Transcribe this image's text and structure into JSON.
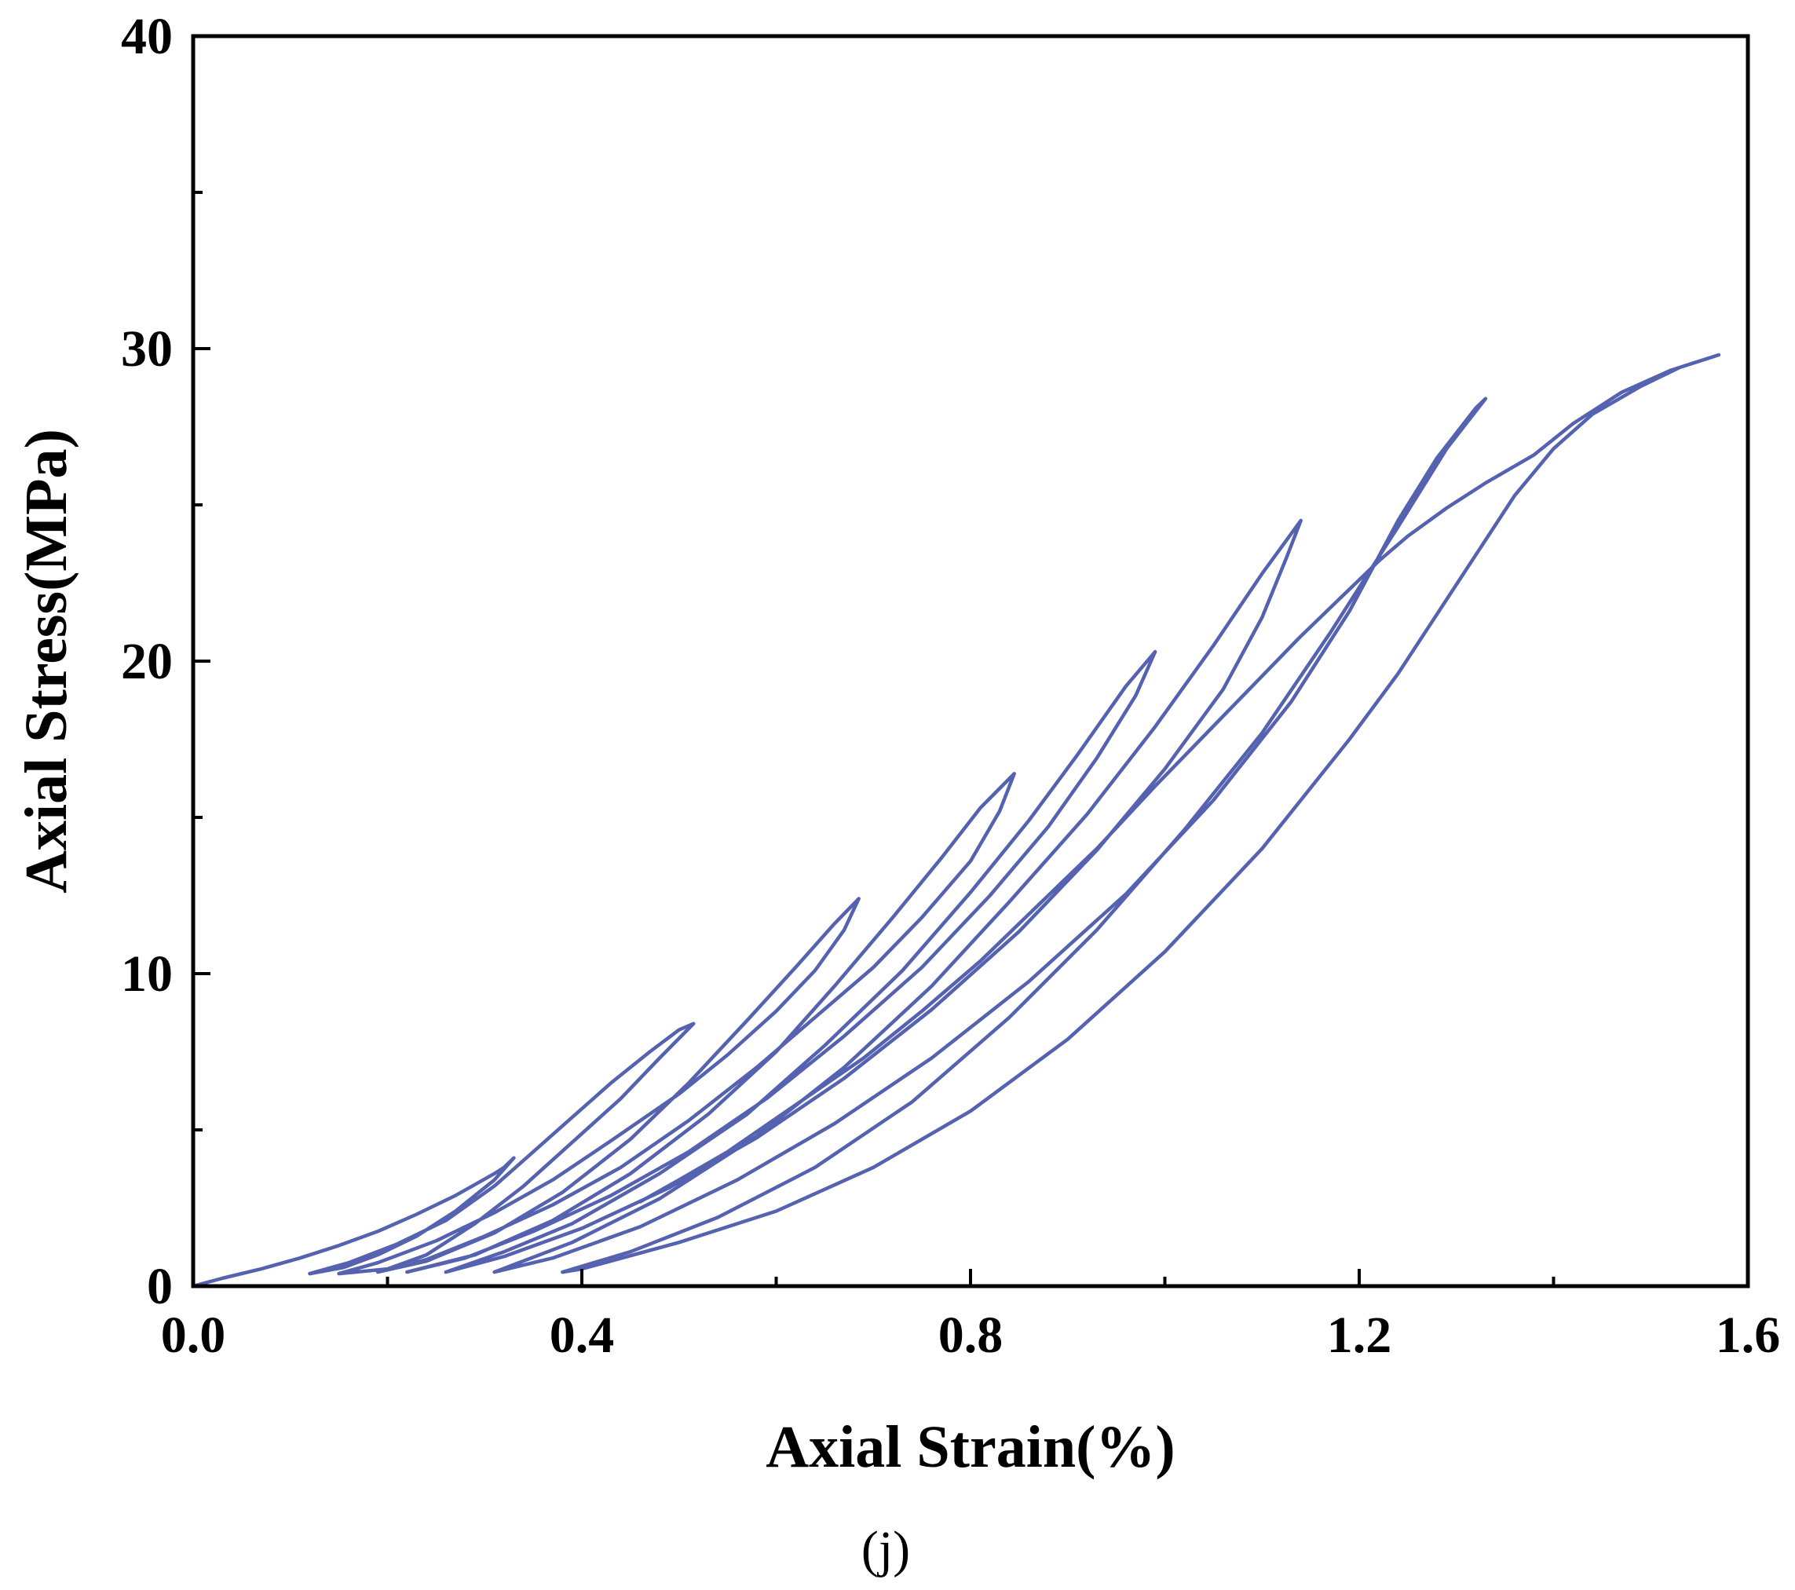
{
  "chart_data": {
    "type": "line",
    "title": "",
    "caption": "(j)",
    "xlabel": "Axial Strain(%)",
    "ylabel": "Axial Stress(MPa)",
    "xlim": [
      0,
      1.6
    ],
    "ylim": [
      0,
      40
    ],
    "x_major_ticks": [
      0.0,
      0.4,
      0.8,
      1.2,
      1.6
    ],
    "x_tick_labels": [
      "0.0",
      "0.4",
      "0.8",
      "1.2",
      "1.6"
    ],
    "x_minor_ticks": [
      0.2,
      0.6,
      1.0,
      1.4
    ],
    "y_major_ticks": [
      0,
      10,
      20,
      30,
      40
    ],
    "y_tick_labels": [
      "0",
      "10",
      "20",
      "30",
      "40"
    ],
    "y_minor_ticks": [
      5,
      15,
      25,
      35
    ],
    "grid": false,
    "legend": "none",
    "line_color": "#5562b0",
    "series": [
      {
        "points": [
          [
            0.0,
            0.0
          ],
          [
            0.03,
            0.25
          ],
          [
            0.07,
            0.55
          ],
          [
            0.11,
            0.9
          ],
          [
            0.15,
            1.3
          ],
          [
            0.19,
            1.75
          ],
          [
            0.23,
            2.3
          ],
          [
            0.27,
            2.9
          ],
          [
            0.31,
            3.6
          ],
          [
            0.32,
            3.8
          ],
          [
            0.33,
            4.1
          ],
          [
            0.31,
            3.4
          ],
          [
            0.27,
            2.4
          ],
          [
            0.23,
            1.6
          ],
          [
            0.19,
            1.0
          ],
          [
            0.155,
            0.6
          ],
          [
            0.12,
            0.4
          ],
          [
            0.16,
            0.75
          ],
          [
            0.21,
            1.35
          ],
          [
            0.26,
            2.1
          ],
          [
            0.31,
            3.2
          ],
          [
            0.35,
            4.3
          ],
          [
            0.39,
            5.4
          ],
          [
            0.43,
            6.5
          ],
          [
            0.47,
            7.5
          ],
          [
            0.5,
            8.2
          ],
          [
            0.515,
            8.4
          ],
          [
            0.48,
            7.3
          ],
          [
            0.44,
            6.0
          ],
          [
            0.39,
            4.6
          ],
          [
            0.34,
            3.2
          ],
          [
            0.29,
            2.0
          ],
          [
            0.24,
            1.0
          ],
          [
            0.2,
            0.55
          ],
          [
            0.15,
            0.4
          ],
          [
            0.19,
            0.75
          ],
          [
            0.25,
            1.45
          ],
          [
            0.31,
            2.35
          ],
          [
            0.37,
            3.4
          ],
          [
            0.43,
            4.65
          ],
          [
            0.5,
            6.15
          ],
          [
            0.55,
            7.4
          ],
          [
            0.6,
            8.8
          ],
          [
            0.64,
            10.1
          ],
          [
            0.67,
            11.4
          ],
          [
            0.685,
            12.4
          ],
          [
            0.66,
            11.6
          ],
          [
            0.62,
            10.2
          ],
          [
            0.57,
            8.5
          ],
          [
            0.51,
            6.5
          ],
          [
            0.45,
            4.7
          ],
          [
            0.38,
            3.0
          ],
          [
            0.31,
            1.7
          ],
          [
            0.24,
            0.8
          ],
          [
            0.19,
            0.45
          ],
          [
            0.24,
            0.85
          ],
          [
            0.3,
            1.6
          ],
          [
            0.37,
            2.6
          ],
          [
            0.44,
            3.8
          ],
          [
            0.51,
            5.3
          ],
          [
            0.58,
            7.0
          ],
          [
            0.64,
            8.6
          ],
          [
            0.7,
            10.2
          ],
          [
            0.75,
            11.8
          ],
          [
            0.8,
            13.6
          ],
          [
            0.83,
            15.2
          ],
          [
            0.845,
            16.4
          ],
          [
            0.81,
            15.3
          ],
          [
            0.77,
            13.7
          ],
          [
            0.72,
            11.8
          ],
          [
            0.66,
            9.6
          ],
          [
            0.6,
            7.5
          ],
          [
            0.53,
            5.5
          ],
          [
            0.45,
            3.6
          ],
          [
            0.37,
            2.1
          ],
          [
            0.29,
            1.0
          ],
          [
            0.22,
            0.45
          ],
          [
            0.28,
            0.9
          ],
          [
            0.35,
            1.75
          ],
          [
            0.43,
            2.9
          ],
          [
            0.51,
            4.3
          ],
          [
            0.59,
            6.0
          ],
          [
            0.67,
            8.0
          ],
          [
            0.75,
            10.2
          ],
          [
            0.82,
            12.5
          ],
          [
            0.88,
            14.7
          ],
          [
            0.93,
            16.9
          ],
          [
            0.97,
            18.9
          ],
          [
            0.99,
            20.3
          ],
          [
            0.96,
            19.2
          ],
          [
            0.91,
            17.0
          ],
          [
            0.86,
            14.9
          ],
          [
            0.8,
            12.6
          ],
          [
            0.73,
            10.1
          ],
          [
            0.65,
            7.7
          ],
          [
            0.57,
            5.5
          ],
          [
            0.48,
            3.6
          ],
          [
            0.39,
            2.0
          ],
          [
            0.32,
            1.1
          ],
          [
            0.26,
            0.45
          ],
          [
            0.32,
            0.95
          ],
          [
            0.4,
            1.85
          ],
          [
            0.49,
            3.15
          ],
          [
            0.58,
            4.75
          ],
          [
            0.67,
            6.65
          ],
          [
            0.76,
            8.85
          ],
          [
            0.85,
            11.35
          ],
          [
            0.93,
            13.95
          ],
          [
            1.0,
            16.55
          ],
          [
            1.06,
            19.1
          ],
          [
            1.1,
            21.4
          ],
          [
            1.125,
            23.3
          ],
          [
            1.14,
            24.5
          ],
          [
            1.1,
            22.8
          ],
          [
            1.05,
            20.5
          ],
          [
            0.99,
            17.9
          ],
          [
            0.92,
            15.1
          ],
          [
            0.84,
            12.3
          ],
          [
            0.76,
            9.6
          ],
          [
            0.67,
            7.0
          ],
          [
            0.58,
            4.8
          ],
          [
            0.48,
            2.8
          ],
          [
            0.39,
            1.4
          ],
          [
            0.31,
            0.45
          ],
          [
            0.37,
            0.9
          ],
          [
            0.46,
            1.9
          ],
          [
            0.56,
            3.4
          ],
          [
            0.66,
            5.2
          ],
          [
            0.76,
            7.3
          ],
          [
            0.86,
            9.75
          ],
          [
            0.96,
            12.55
          ],
          [
            1.05,
            15.55
          ],
          [
            1.13,
            18.7
          ],
          [
            1.19,
            21.6
          ],
          [
            1.24,
            24.5
          ],
          [
            1.28,
            26.5
          ],
          [
            1.32,
            28.1
          ],
          [
            1.33,
            28.4
          ],
          [
            1.29,
            26.8
          ],
          [
            1.24,
            24.3
          ],
          [
            1.17,
            20.9
          ],
          [
            1.1,
            17.7
          ],
          [
            1.02,
            14.6
          ],
          [
            0.93,
            11.4
          ],
          [
            0.84,
            8.6
          ],
          [
            0.74,
            5.9
          ],
          [
            0.64,
            3.8
          ],
          [
            0.54,
            2.2
          ],
          [
            0.45,
            1.1
          ],
          [
            0.38,
            0.45
          ],
          [
            0.4,
            0.55
          ],
          [
            0.5,
            1.4
          ],
          [
            0.6,
            2.4
          ],
          [
            0.7,
            3.8
          ],
          [
            0.8,
            5.6
          ],
          [
            0.9,
            7.9
          ],
          [
            1.0,
            10.7
          ],
          [
            1.1,
            14.0
          ],
          [
            1.19,
            17.5
          ],
          [
            1.24,
            19.6
          ],
          [
            1.28,
            21.5
          ],
          [
            1.32,
            23.4
          ],
          [
            1.36,
            25.3
          ],
          [
            1.4,
            26.8
          ],
          [
            1.44,
            27.9
          ],
          [
            1.49,
            28.8
          ],
          [
            1.53,
            29.4
          ],
          [
            1.57,
            29.8
          ],
          [
            1.52,
            29.3
          ],
          [
            1.47,
            28.6
          ],
          [
            1.42,
            27.6
          ],
          [
            1.38,
            26.6
          ],
          [
            1.33,
            25.7
          ],
          [
            1.29,
            24.9
          ],
          [
            1.25,
            24.0
          ],
          [
            1.22,
            23.2
          ],
          [
            1.18,
            22.0
          ],
          [
            1.14,
            20.8
          ],
          [
            1.09,
            19.2
          ],
          [
            1.04,
            17.6
          ],
          [
            0.99,
            16.0
          ],
          [
            0.93,
            14.0
          ],
          [
            0.87,
            12.2
          ],
          [
            0.81,
            10.4
          ],
          [
            0.75,
            8.8
          ],
          [
            0.69,
            7.3
          ],
          [
            0.62,
            5.8
          ],
          [
            0.55,
            4.3
          ],
          [
            0.5,
            3.4
          ],
          [
            0.46,
            2.7
          ]
        ]
      }
    ]
  }
}
